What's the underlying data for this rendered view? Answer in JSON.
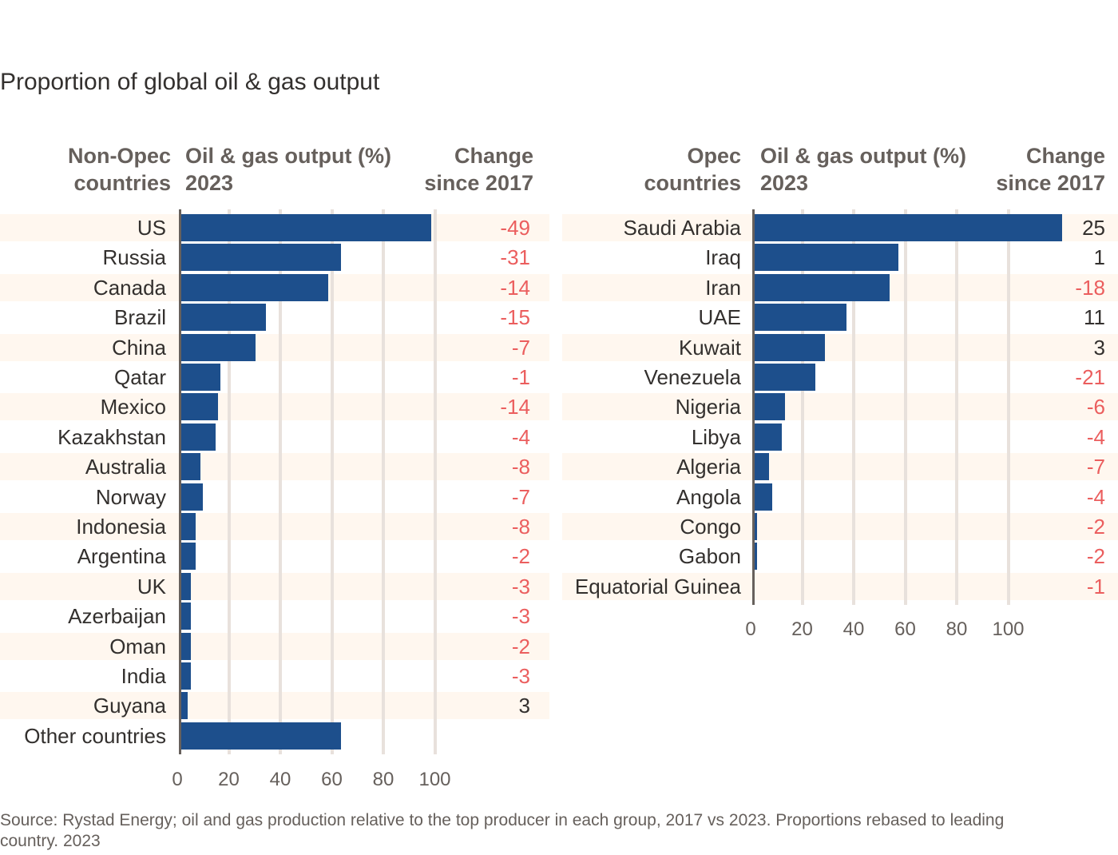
{
  "chart_data": [
    {
      "type": "bar",
      "orientation": "horizontal",
      "subtitle": "Proportion of global oil & gas output",
      "headers": {
        "category": "Non-Opec\ncountries",
        "value": "Oil & gas output (%)\n2023",
        "change": "Change\nsince 2017"
      },
      "categories": [
        "US",
        "Russia",
        "Canada",
        "Brazil",
        "China",
        "Qatar",
        "Mexico",
        "Kazakhstan",
        "Australia",
        "Norway",
        "Indonesia",
        "Argentina",
        "UK",
        "Azerbaijan",
        "Oman",
        "India",
        "Guyana",
        "Other countries"
      ],
      "values": [
        100,
        64,
        59,
        34,
        30,
        16,
        15,
        14,
        8,
        9,
        6,
        6,
        4,
        4,
        4,
        4,
        3,
        64
      ],
      "change": [
        "-49",
        "-31",
        "-14",
        "-15",
        "-7",
        "-1",
        "-14",
        "-4",
        "-8",
        "-7",
        "-8",
        "-2",
        "-3",
        "-3",
        "-2",
        "-3",
        "3",
        ""
      ],
      "xticks": [
        "0",
        "20",
        "40",
        "60",
        "80",
        "100"
      ],
      "xlim": [
        0,
        100
      ],
      "grid": true
    },
    {
      "type": "bar",
      "orientation": "horizontal",
      "headers": {
        "category": "Opec\ncountries",
        "value": "Oil & gas output (%)\n2023",
        "change": "Change\nsince 2017"
      },
      "categories": [
        "Saudi Arabia",
        "Iraq",
        "Iran",
        "UAE",
        "Kuwait",
        "Venezuela",
        "Nigeria",
        "Libya",
        "Algeria",
        "Angola",
        "Congo",
        "Gabon",
        "Equatorial Guinea"
      ],
      "values": [
        100,
        47,
        44,
        30,
        23,
        20,
        10,
        9,
        5,
        6,
        1,
        1,
        0
      ],
      "change": [
        "25",
        "1",
        "-18",
        "11",
        "3",
        "-21",
        "-6",
        "-4",
        "-7",
        "-4",
        "-2",
        "-2",
        "-1"
      ],
      "xticks": [
        "0",
        "20",
        "40",
        "60",
        "80",
        "100"
      ],
      "xlim": [
        0,
        100
      ],
      "grid": true
    }
  ],
  "footnote": "Source: Rystad Energy; oil and gas production relative to the top producer in each group, 2017 vs 2023. Proportions rebased to leading country.\n2023"
}
